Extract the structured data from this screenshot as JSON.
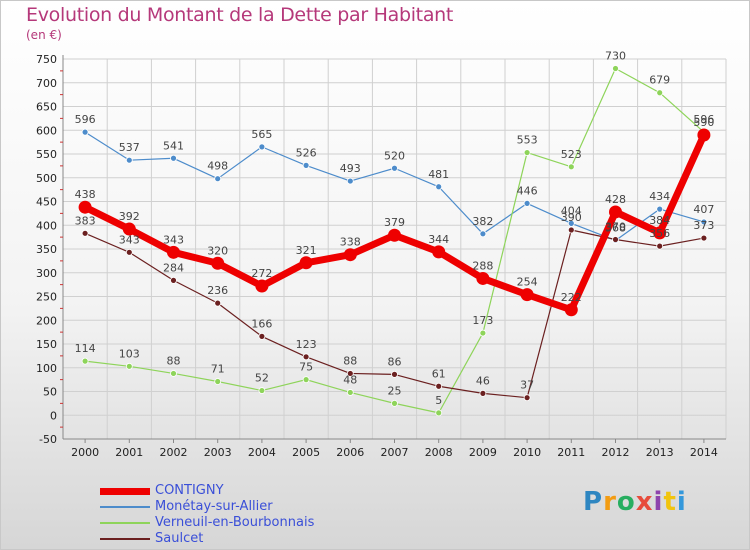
{
  "title": "Evolution du Montant de la Dette par Habitant",
  "subtitle": "(en €)",
  "brand": [
    "P",
    "r",
    "o",
    "x",
    "i",
    "t",
    "i"
  ],
  "brand_colors": [
    "#2e86c1",
    "#f39c12",
    "#27ae60",
    "#e74c3c",
    "#8e44ad",
    "#f1c40f",
    "#3498db"
  ],
  "chart_data": {
    "type": "line",
    "title": "Evolution du Montant de la Dette par Habitant",
    "subtitle": "(en €)",
    "xlabel": "",
    "ylabel": "",
    "categories": [
      "2000",
      "2001",
      "2002",
      "2003",
      "2004",
      "2005",
      "2006",
      "2007",
      "2008",
      "2009",
      "2010",
      "2011",
      "2012",
      "2013",
      "2014"
    ],
    "ylim": [
      -50,
      750
    ],
    "yticks": [
      -50,
      0,
      50,
      100,
      150,
      200,
      250,
      300,
      350,
      400,
      450,
      500,
      550,
      600,
      650,
      700,
      750
    ],
    "ytick_labels": [
      "-50",
      "0",
      "50",
      "100",
      "150",
      "200",
      "250",
      "300",
      "350",
      "400",
      "450",
      "500",
      "550",
      "600",
      "650",
      "700",
      "750"
    ],
    "grid": true,
    "legend_position": "bottom-left",
    "series": [
      {
        "name": "Monétay-sur-Allier",
        "color": "#4d8ccb",
        "values": [
          596,
          537,
          541,
          498,
          565,
          526,
          493,
          520,
          481,
          382,
          446,
          404,
          368,
          434,
          407
        ],
        "labels": [
          "596",
          "537",
          "541",
          "498",
          "565",
          "526",
          "493",
          "520",
          "481",
          "382",
          "446",
          "404",
          "368",
          "434",
          "407"
        ]
      },
      {
        "name": "Verneuil-en-Bourbonnais",
        "color": "#8ed45a",
        "values": [
          114,
          103,
          88,
          71,
          52,
          75,
          48,
          25,
          5,
          173,
          553,
          523,
          730,
          679,
          596
        ],
        "labels": [
          "114",
          "103",
          "88",
          "71",
          "52",
          "75",
          "48",
          "25",
          "5",
          "173",
          "553",
          "523",
          "730",
          "679",
          "596"
        ]
      },
      {
        "name": "Saulcet",
        "color": "#6b2020",
        "values": [
          383,
          343,
          284,
          236,
          166,
          123,
          88,
          86,
          61,
          46,
          37,
          390,
          370,
          356,
          373
        ],
        "labels": [
          "383",
          "343",
          "284",
          "236",
          "166",
          "123",
          "88",
          "86",
          "61",
          "46",
          "37",
          "390",
          "370",
          "356",
          "373"
        ]
      },
      {
        "name": "CONTIGNY",
        "color": "#ee0000",
        "values": [
          438,
          392,
          343,
          320,
          272,
          321,
          338,
          379,
          344,
          288,
          254,
          222,
          428,
          384,
          590
        ],
        "labels": [
          "438",
          "392",
          "343",
          "320",
          "272",
          "321",
          "338",
          "379",
          "344",
          "288",
          "254",
          "222",
          "428",
          "384",
          "590"
        ]
      }
    ],
    "legend": [
      {
        "name": "CONTIGNY",
        "color": "#ee0000",
        "label_color": "#3a4fd8"
      },
      {
        "name": "Monétay-sur-Allier",
        "color": "#4d8ccb",
        "label_color": "#3a4fd8"
      },
      {
        "name": "Verneuil-en-Bourbonnais",
        "color": "#8ed45a",
        "label_color": "#3a4fd8"
      },
      {
        "name": "Saulcet",
        "color": "#6b2020",
        "label_color": "#3a4fd8"
      }
    ]
  }
}
